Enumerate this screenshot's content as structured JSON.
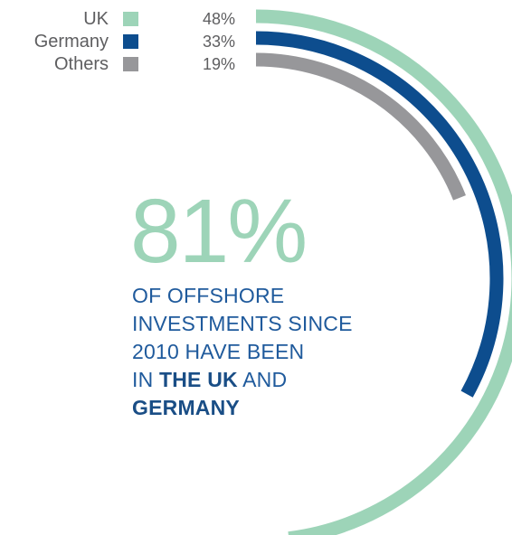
{
  "colors": {
    "uk": "#9dd4b8",
    "germany": "#0d4d8e",
    "others": "#97979a",
    "headline": "#9dd4b8",
    "caption": "#1f5a9c"
  },
  "legend": [
    {
      "label": "UK",
      "pct": "48%",
      "color": "#9dd4b8"
    },
    {
      "label": "Germany",
      "pct": "33%",
      "color": "#0d4d8e"
    },
    {
      "label": "Others",
      "pct": "19%",
      "color": "#97979a"
    }
  ],
  "headline": "81%",
  "caption": {
    "line1": "OF OFFSHORE",
    "line2": "INVESTMENTS SINCE",
    "line3": "2010 HAVE BEEN",
    "line4_prefix": "IN ",
    "line4_bold": "THE UK",
    "line4_suffix": " AND",
    "line5_bold": "GERMANY"
  },
  "chart_data": {
    "type": "radial-bar",
    "categories": [
      "UK",
      "Germany",
      "Others"
    ],
    "values": [
      48,
      33,
      19
    ],
    "unit": "%",
    "title": ""
  }
}
